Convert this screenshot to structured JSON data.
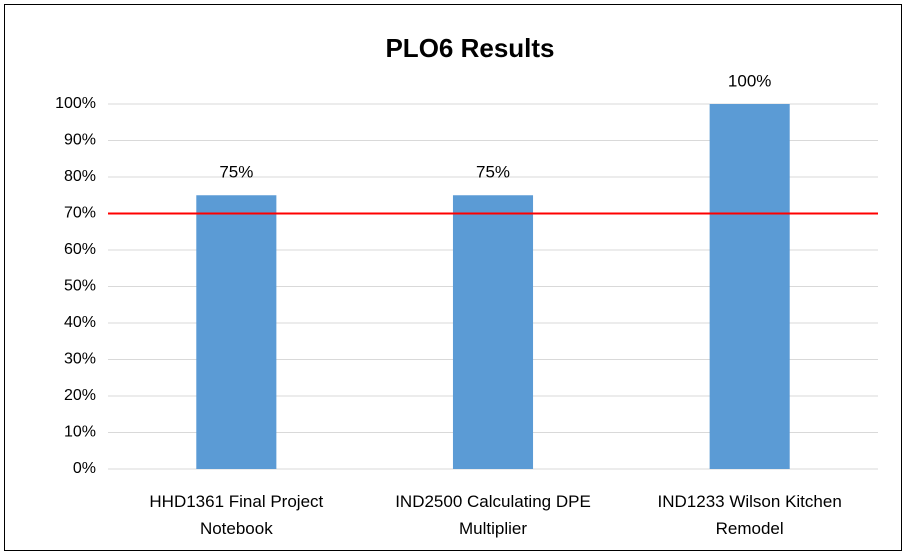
{
  "chart_data": {
    "type": "bar",
    "title": "PLO6 Results",
    "categories": [
      "HHD1361 Final Project Notebook",
      "IND2500 Calculating DPE Multiplier",
      "IND1233 Wilson Kitchen Remodel"
    ],
    "values": [
      75,
      75,
      100
    ],
    "value_labels": [
      "75%",
      "75%",
      "100%"
    ],
    "color": "#5b9bd5",
    "ylim": [
      0,
      100
    ],
    "yticks": [
      {
        "value": 0,
        "label": "0%"
      },
      {
        "value": 10,
        "label": "10%"
      },
      {
        "value": 20,
        "label": "20%"
      },
      {
        "value": 30,
        "label": "30%"
      },
      {
        "value": 40,
        "label": "40%"
      },
      {
        "value": 50,
        "label": "50%"
      },
      {
        "value": 60,
        "label": "60%"
      },
      {
        "value": 70,
        "label": "70%"
      },
      {
        "value": 80,
        "label": "80%"
      },
      {
        "value": 90,
        "label": "90%"
      },
      {
        "value": 100,
        "label": "100%"
      }
    ],
    "grid": true,
    "reference_line": {
      "value": 70,
      "color": "#ff0000"
    }
  }
}
